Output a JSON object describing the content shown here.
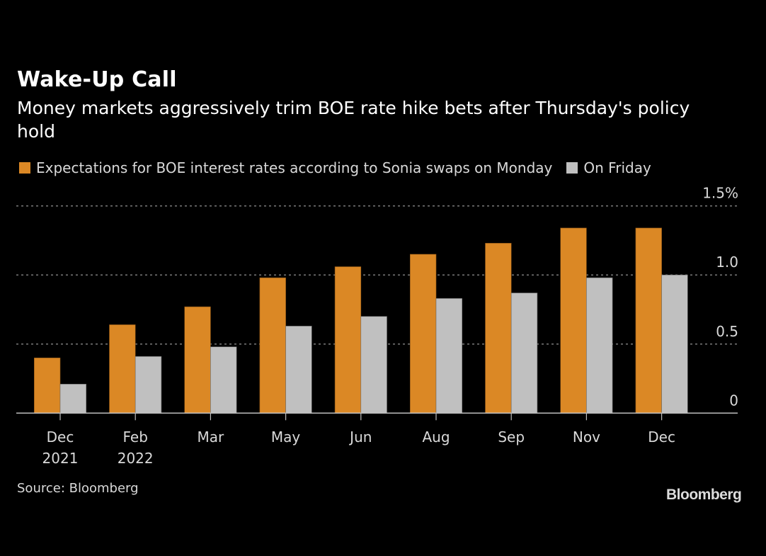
{
  "header": {
    "title": "Wake-Up Call",
    "subtitle": "Money markets aggressively trim BOE rate hike bets after Thursday's policy hold"
  },
  "legend": [
    {
      "label": "Expectations for BOE interest rates according to Sonia swaps on Monday",
      "color": "#db8825"
    },
    {
      "label": "On Friday",
      "color": "#c0c0c0"
    }
  ],
  "footer": {
    "source": "Source: Bloomberg",
    "brand": "Bloomberg"
  },
  "chart_data": {
    "type": "bar",
    "title": "Wake-Up Call",
    "subtitle": "Money markets aggressively trim BOE rate hike bets after Thursday's policy hold",
    "xlabel": "",
    "ylabel": "",
    "categories": [
      {
        "line1": "Dec",
        "line2": "2021"
      },
      {
        "line1": "Feb",
        "line2": "2022"
      },
      {
        "line1": "Mar",
        "line2": ""
      },
      {
        "line1": "May",
        "line2": ""
      },
      {
        "line1": "Jun",
        "line2": ""
      },
      {
        "line1": "Aug",
        "line2": ""
      },
      {
        "line1": "Sep",
        "line2": ""
      },
      {
        "line1": "Nov",
        "line2": ""
      },
      {
        "line1": "Dec",
        "line2": ""
      }
    ],
    "series": [
      {
        "name": "Expectations for BOE interest rates according to Sonia swaps on Monday",
        "color": "#db8825",
        "values": [
          0.4,
          0.64,
          0.77,
          0.98,
          1.06,
          1.15,
          1.23,
          1.34,
          1.34
        ]
      },
      {
        "name": "On Friday",
        "color": "#c0c0c0",
        "values": [
          0.21,
          0.41,
          0.48,
          0.63,
          0.7,
          0.83,
          0.87,
          0.98,
          1.0
        ]
      }
    ],
    "ylim": [
      0,
      1.5
    ],
    "yticks": [
      {
        "value": 0,
        "label": "0"
      },
      {
        "value": 0.5,
        "label": "0.5"
      },
      {
        "value": 1.0,
        "label": "1.0"
      },
      {
        "value": 1.5,
        "label": "1.5%"
      }
    ],
    "y_axis_side": "right",
    "grid": true,
    "legend_position": "top-left"
  }
}
